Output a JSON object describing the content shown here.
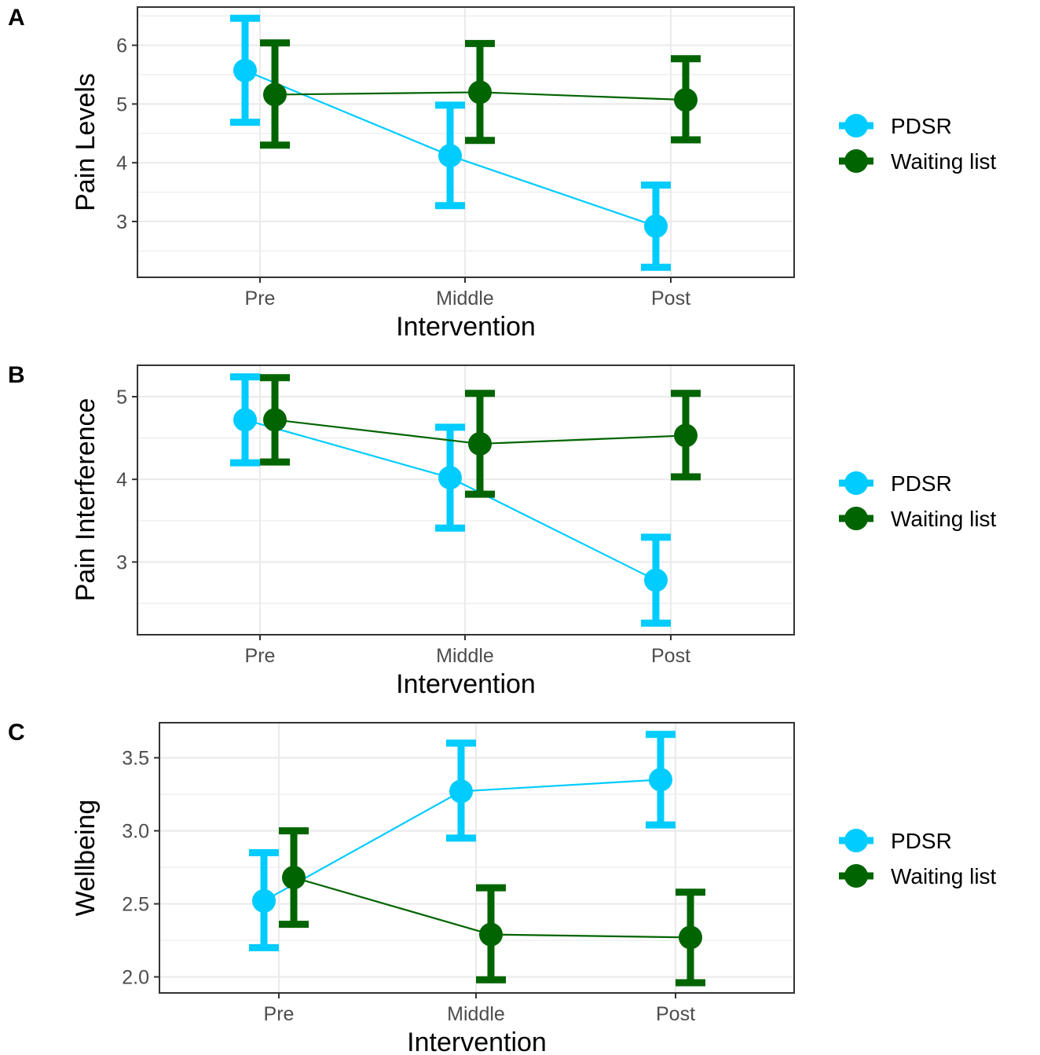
{
  "colors": {
    "pdsr": "#00ccff",
    "waiting": "#006400",
    "grid": "#ebebeb",
    "frame": "#333333"
  },
  "chart_data": [
    {
      "panel": "A",
      "type": "line",
      "categories": [
        "Pre",
        "Middle",
        "Post"
      ],
      "xlabel": "Intervention",
      "ylabel": "Pain Levels",
      "ylim": [
        2.05,
        6.65
      ],
      "yticks": [
        3,
        4,
        5,
        6
      ],
      "ytick_labels": [
        "3",
        "4",
        "5",
        "6"
      ],
      "grid": true,
      "legend": "right",
      "series": [
        {
          "name": "PDSR",
          "color": "#00ccff",
          "values": [
            5.57,
            4.12,
            2.92
          ],
          "lower": [
            4.69,
            3.27,
            2.22
          ],
          "upper": [
            6.46,
            4.98,
            3.62
          ]
        },
        {
          "name": "Waiting list",
          "color": "#006400",
          "values": [
            5.16,
            5.2,
            5.07
          ],
          "lower": [
            4.3,
            4.38,
            4.39
          ],
          "upper": [
            6.04,
            6.03,
            5.77
          ]
        }
      ]
    },
    {
      "panel": "B",
      "type": "line",
      "categories": [
        "Pre",
        "Middle",
        "Post"
      ],
      "xlabel": "Intervention",
      "ylabel": "Pain Interference",
      "ylim": [
        2.12,
        5.38
      ],
      "yticks": [
        3,
        4,
        5
      ],
      "ytick_labels": [
        "3",
        "4",
        "5"
      ],
      "grid": true,
      "legend": "right",
      "series": [
        {
          "name": "PDSR",
          "color": "#00ccff",
          "values": [
            4.72,
            4.02,
            2.78
          ],
          "lower": [
            4.2,
            3.41,
            2.26
          ],
          "upper": [
            5.24,
            4.63,
            3.3
          ]
        },
        {
          "name": "Waiting list",
          "color": "#006400",
          "values": [
            4.72,
            4.43,
            4.53
          ],
          "lower": [
            4.21,
            3.82,
            4.03
          ],
          "upper": [
            5.23,
            5.04,
            5.04
          ]
        }
      ]
    },
    {
      "panel": "C",
      "type": "line",
      "categories": [
        "Pre",
        "Middle",
        "Post"
      ],
      "xlabel": "Intervention",
      "ylabel": "Wellbeing",
      "ylim": [
        1.89,
        3.74
      ],
      "yticks": [
        2.0,
        2.5,
        3.0,
        3.5
      ],
      "ytick_labels": [
        "2.0",
        "2.5",
        "3.0",
        "3.5"
      ],
      "grid": true,
      "legend": "right",
      "series": [
        {
          "name": "PDSR",
          "color": "#00ccff",
          "values": [
            2.52,
            3.27,
            3.35
          ],
          "lower": [
            2.2,
            2.95,
            3.04
          ],
          "upper": [
            2.85,
            3.6,
            3.66
          ]
        },
        {
          "name": "Waiting list",
          "color": "#006400",
          "values": [
            2.68,
            2.29,
            2.27
          ],
          "lower": [
            2.36,
            1.98,
            1.96
          ],
          "upper": [
            3.0,
            2.61,
            2.58
          ]
        }
      ]
    }
  ]
}
